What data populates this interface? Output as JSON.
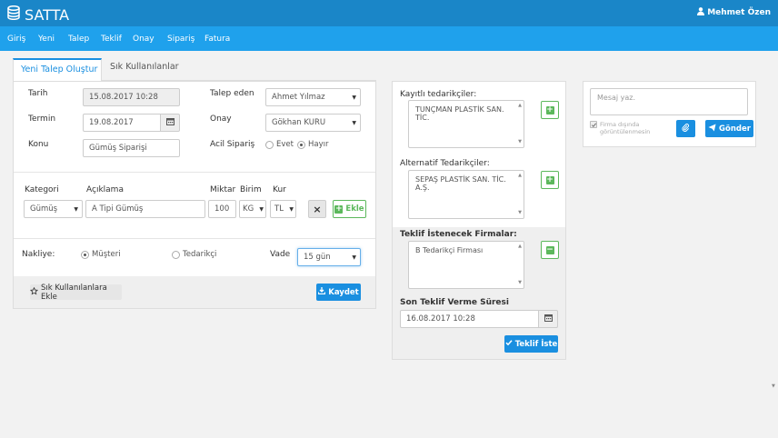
{
  "app": {
    "title": "SATTA",
    "user": "Mehmet Özen"
  },
  "nav": [
    "Giriş",
    "Yeni",
    "Talep",
    "Teklif",
    "Onay",
    "Sipariş",
    "Fatura"
  ],
  "tabs": {
    "active": "Yeni Talep Oluştur",
    "other": "Sık Kullanılanlar"
  },
  "form": {
    "tarih_label": "Tarih",
    "tarih_value": "15.08.2017 10:28",
    "termin_label": "Termin",
    "termin_value": "19.08.2017",
    "konu_label": "Konu",
    "konu_placeholder": "Gümüş Siparişi",
    "talep_eden_label": "Talep eden",
    "talep_eden_value": "Ahmet Yılmaz",
    "onay_label": "Onay",
    "onay_value": "Gökhan KURU",
    "acil_label": "Acil Sipariş",
    "acil_evet": "Evet",
    "acil_hayir": "Hayır"
  },
  "item": {
    "kategori_label": "Kategori",
    "aciklama_label": "Açıklama",
    "miktar_label": "Miktar",
    "birim_label": "Birim",
    "kur_label": "Kur",
    "kategori_value": "Gümüş",
    "aciklama_value": "A Tipi Gümüş",
    "miktar_value": "100",
    "birim_value": "KG",
    "kur_value": "TL",
    "remove_label": "×",
    "add_label": "Ekle"
  },
  "shipping": {
    "nakliye_label": "Nakliye:",
    "musteri": "Müşteri",
    "tedarikci": "Tedarikçi",
    "vade_label": "Vade",
    "vade_value": "15 gün"
  },
  "footer": {
    "favorites_button": "Sık Kullanılanlara Ekle",
    "save_button": "Kaydet"
  },
  "suppliers": {
    "registered_label": "Kayıtlı tedarikçiler:",
    "registered_items": [
      "TUNÇMAN PLASTİK SAN. TİC."
    ],
    "alternative_label": "Alternatif Tedarikçiler:",
    "alternative_items": [
      "SEPAŞ PLASTİK SAN. TİC. A.Ş."
    ],
    "requested_label": "Teklif İstenecek Firmalar:",
    "requested_items": [
      "B Tedarikçi Firması"
    ],
    "deadline_label": "Son Teklif Verme Süresi",
    "deadline_value": "16.08.2017 10:28",
    "request_button": "Teklif İste"
  },
  "message": {
    "placeholder": "Mesaj yaz.",
    "hide_text": "Firma dışında görüntülenmesin",
    "send_button": "Gönder"
  },
  "colors": {
    "topbar": "#1a86c8",
    "navbar": "#1fa1ec",
    "primary": "#1a8fe0",
    "success": "#5cb85c"
  }
}
